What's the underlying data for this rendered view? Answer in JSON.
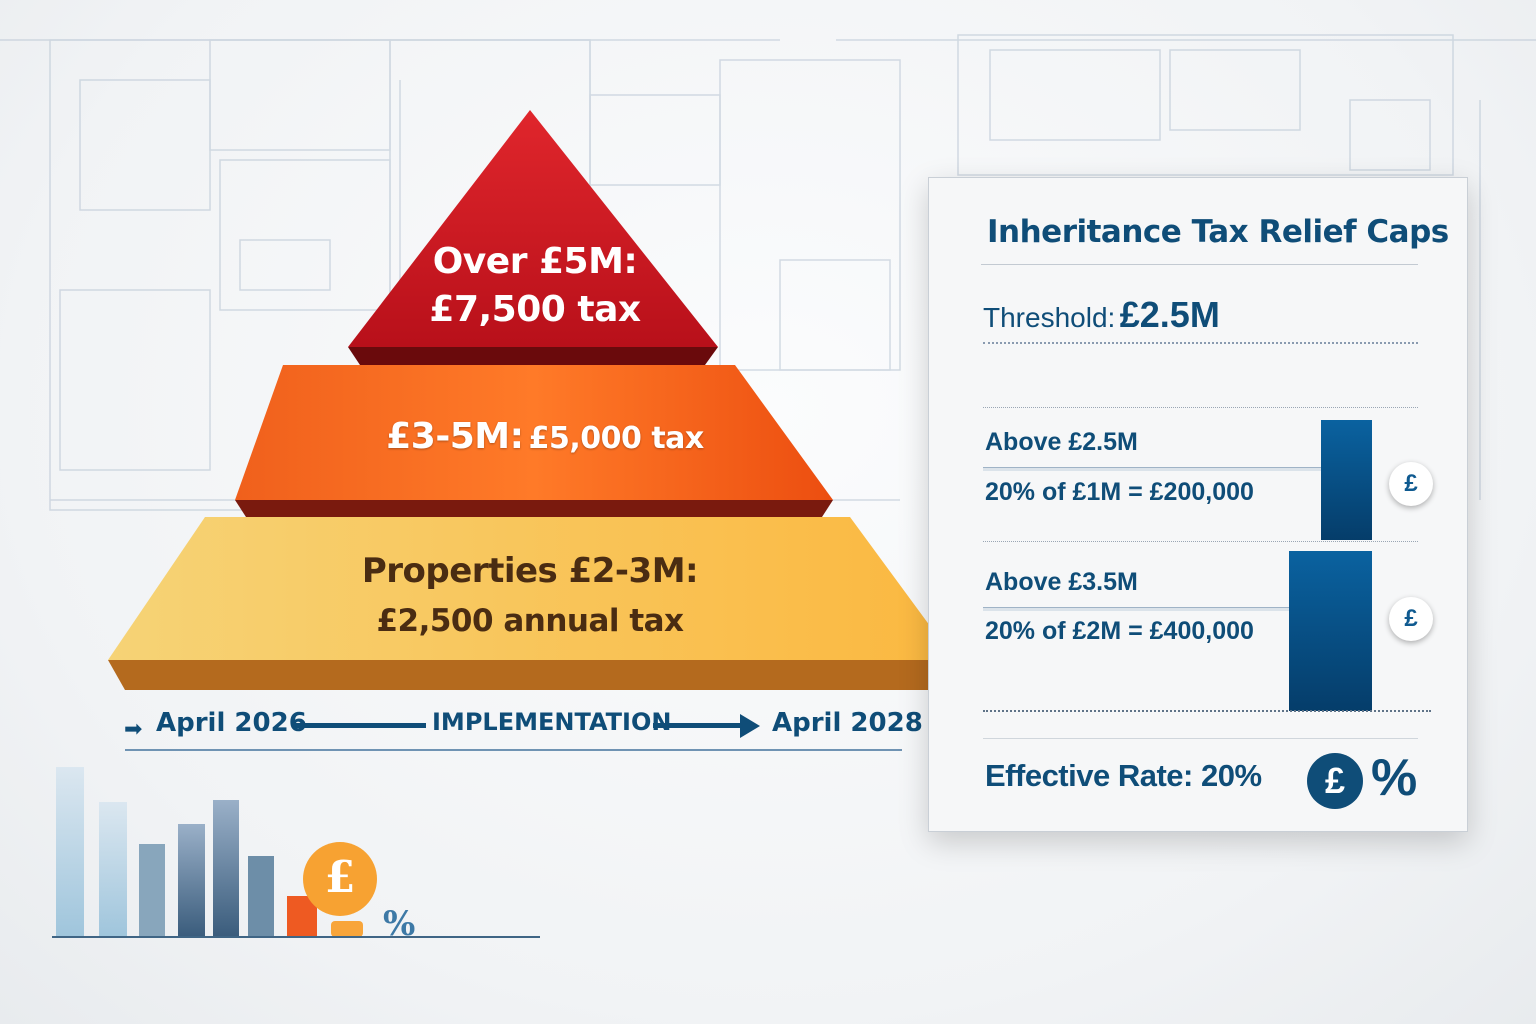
{
  "pyramid": {
    "top": {
      "line1": "Over £5M:",
      "line2": "£7,500 tax",
      "color": "#c8141e"
    },
    "middle": {
      "label_big": "£3-5M:",
      "label_small": "£5,000 tax",
      "color": "#f25a1a"
    },
    "bottom": {
      "line1": "Properties £2-3M:",
      "line2": "£2,500 annual tax",
      "color": "#f8c65a"
    }
  },
  "timeline": {
    "start": "April 2026",
    "middle": "IMPLEMENTATION",
    "end": "April 2028"
  },
  "panel": {
    "title": "Inheritance Tax Relief Caps",
    "threshold_label": "Threshold:",
    "threshold_value": "£2.5M",
    "rows": [
      {
        "heading": "Above £2.5M",
        "calc": "20% of £1M = £200,000",
        "icon": "pound-coin-icon"
      },
      {
        "heading": "Above £3.5M",
        "calc": "20% of £2M = £400,000",
        "icon": "pound-coin-icon"
      }
    ],
    "effective_label": "Effective Rate:",
    "effective_value": "20%",
    "pound_symbol": "£",
    "percent_symbol": "%",
    "accent": "#0f4d78"
  },
  "decor": {
    "pound_symbol": "£",
    "percent_symbol": "%"
  }
}
